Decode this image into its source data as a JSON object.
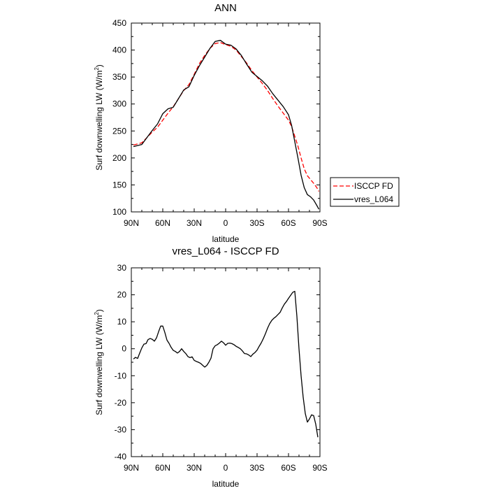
{
  "chart_data": [
    {
      "type": "line",
      "title": "ANN",
      "xlabel": "latitude",
      "ylabel": "Surf downwelling LW (W/m",
      "ylabel_sup": "2",
      "ylabel_tail": ")",
      "xlim": [
        90,
        -90
      ],
      "ylim": [
        100,
        450
      ],
      "x_ticks": [
        90,
        60,
        30,
        0,
        -30,
        -60,
        -90
      ],
      "x_tick_labels": [
        "90N",
        "60N",
        "30N",
        "0",
        "30S",
        "60S",
        "90S"
      ],
      "y_ticks": [
        100,
        150,
        200,
        250,
        300,
        350,
        400,
        450
      ],
      "y_tick_labels": [
        "100",
        "150",
        "200",
        "250",
        "300",
        "350",
        "400",
        "450"
      ],
      "legend_position": "right",
      "series": [
        {
          "name": "ISCCP FD",
          "color": "#ff0000",
          "dash": true,
          "x": [
            88,
            80,
            75,
            70,
            65,
            60,
            55,
            50,
            45,
            40,
            35,
            30,
            25,
            20,
            15,
            10,
            5,
            0,
            -5,
            -10,
            -15,
            -20,
            -25,
            -30,
            -35,
            -40,
            -45,
            -50,
            -55,
            -60,
            -63,
            -66,
            -69,
            -72,
            -75,
            -78,
            -81,
            -84,
            -87,
            -89
          ],
          "values": [
            224,
            228,
            238,
            248,
            257,
            270,
            283,
            295,
            310,
            325,
            336,
            355,
            375,
            390,
            403,
            412,
            414,
            410,
            407,
            400,
            388,
            376,
            362,
            350,
            338,
            325,
            310,
            296,
            283,
            270,
            258,
            240,
            222,
            200,
            180,
            167,
            160,
            153,
            145,
            138
          ]
        },
        {
          "name": "vres_L064",
          "color": "#000000",
          "dash": false,
          "x": [
            88,
            80,
            75,
            70,
            65,
            60,
            55,
            50,
            45,
            40,
            35,
            30,
            25,
            20,
            15,
            10,
            5,
            0,
            -5,
            -10,
            -15,
            -20,
            -25,
            -30,
            -35,
            -40,
            -45,
            -50,
            -55,
            -60,
            -63,
            -66,
            -69,
            -72,
            -75,
            -78,
            -81,
            -84,
            -87,
            -89
          ],
          "values": [
            221,
            225,
            238,
            251,
            263,
            282,
            291,
            294,
            310,
            326,
            332,
            353,
            371,
            387,
            403,
            416,
            418,
            411,
            409,
            402,
            390,
            374,
            359,
            351,
            343,
            333,
            319,
            307,
            295,
            280,
            260,
            230,
            200,
            168,
            145,
            132,
            128,
            122,
            112,
            105
          ]
        }
      ]
    },
    {
      "type": "line",
      "title": "vres_L064 - ISCCP FD",
      "xlabel": "latitude",
      "ylabel": "Surf downwelling LW (W/m",
      "ylabel_sup": "2",
      "ylabel_tail": ")",
      "xlim": [
        90,
        -90
      ],
      "ylim": [
        -40,
        30
      ],
      "x_ticks": [
        90,
        60,
        30,
        0,
        -30,
        -60,
        -90
      ],
      "x_tick_labels": [
        "90N",
        "60N",
        "30N",
        "0",
        "30S",
        "60S",
        "90S"
      ],
      "y_ticks": [
        -40,
        -30,
        -20,
        -10,
        0,
        10,
        20,
        30
      ],
      "y_tick_labels": [
        "-40",
        "-30",
        "-20",
        "-10",
        "0",
        "10",
        "20",
        "30"
      ],
      "series": [
        {
          "name": "vres_L064 - ISCCP FD",
          "color": "#000000",
          "dash": false,
          "x": [
            88,
            86,
            84,
            82,
            80,
            78,
            76,
            74,
            72,
            70,
            68,
            66,
            64,
            62,
            60,
            58,
            56,
            54,
            52,
            50,
            48,
            46,
            44,
            42,
            40,
            38,
            36,
            34,
            32,
            30,
            28,
            26,
            24,
            22,
            20,
            18,
            16,
            14,
            12,
            10,
            8,
            6,
            4,
            2,
            0,
            -2,
            -4,
            -6,
            -8,
            -10,
            -12,
            -14,
            -16,
            -18,
            -20,
            -22,
            -24,
            -26,
            -28,
            -30,
            -32,
            -34,
            -36,
            -38,
            -40,
            -42,
            -44,
            -46,
            -48,
            -50,
            -52,
            -54,
            -56,
            -58,
            -60,
            -62,
            -64,
            -66,
            -68,
            -70,
            -72,
            -74,
            -76,
            -78,
            -80,
            -82,
            -84,
            -86,
            -88
          ],
          "values": [
            -3.8,
            -3.2,
            -3.6,
            -1.6,
            0.3,
            1.7,
            1.9,
            3.4,
            3.8,
            3.5,
            2.8,
            4.0,
            6.3,
            8.4,
            8.4,
            6.0,
            3.2,
            2.0,
            0.5,
            -0.6,
            -1.0,
            -1.6,
            -1.0,
            0.0,
            -1.0,
            -1.8,
            -2.9,
            -3.3,
            -3.0,
            -4.3,
            -4.7,
            -5.0,
            -5.4,
            -6.1,
            -6.8,
            -6.2,
            -5.0,
            -3.5,
            0.0,
            1.1,
            1.5,
            2.1,
            2.8,
            2.2,
            1.3,
            2.0,
            2.1,
            1.9,
            1.5,
            0.9,
            0.5,
            0.0,
            -0.8,
            -1.8,
            -1.9,
            -2.3,
            -2.9,
            -2.0,
            -1.4,
            -0.5,
            0.9,
            2.2,
            3.8,
            5.6,
            7.6,
            9.3,
            10.5,
            11.3,
            11.9,
            12.7,
            13.5,
            15.1,
            16.5,
            17.5,
            18.7,
            19.8,
            20.9,
            21.3,
            12.0,
            0.0,
            -10.0,
            -18.0,
            -24.0,
            -27.2,
            -26.0,
            -24.5,
            -24.8,
            -28.0,
            -32.8
          ]
        }
      ]
    }
  ],
  "legend": {
    "items": [
      {
        "name": "ISCCP FD",
        "color": "#ff0000",
        "dash": true
      },
      {
        "name": "vres_L064",
        "color": "#000000",
        "dash": false
      }
    ]
  }
}
